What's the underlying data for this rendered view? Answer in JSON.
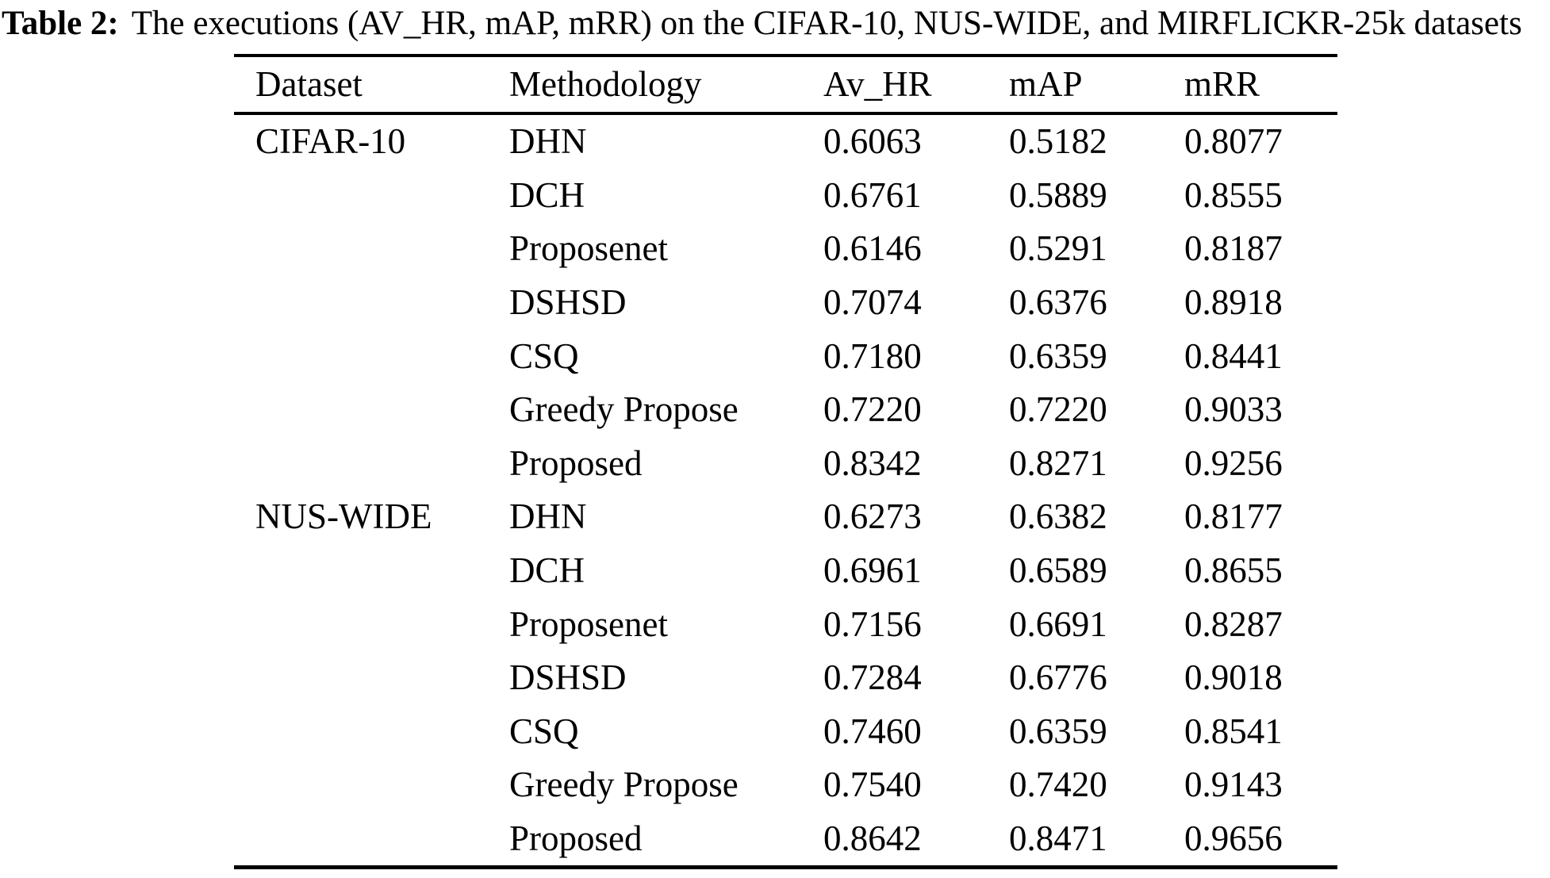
{
  "caption": {
    "label": "Table 2:",
    "text": "The executions (AV_HR, mAP, mRR) on the CIFAR-10, NUS-WIDE, and MIRFLICKR-25k datasets"
  },
  "colors": {
    "text": "#000000",
    "background": "#ffffff",
    "rule": "#000000"
  },
  "table": {
    "columns": [
      "Dataset",
      "Methodology",
      "Av_HR",
      "mAP",
      "mRR"
    ],
    "rows": [
      {
        "dataset": "CIFAR-10",
        "methodology": "DHN",
        "av_hr": "0.6063",
        "map": "0.5182",
        "mrr": "0.8077"
      },
      {
        "dataset": "",
        "methodology": "DCH",
        "av_hr": "0.6761",
        "map": "0.5889",
        "mrr": "0.8555"
      },
      {
        "dataset": "",
        "methodology": "Proposenet",
        "av_hr": "0.6146",
        "map": "0.5291",
        "mrr": "0.8187"
      },
      {
        "dataset": "",
        "methodology": "DSHSD",
        "av_hr": "0.7074",
        "map": "0.6376",
        "mrr": "0.8918"
      },
      {
        "dataset": "",
        "methodology": "CSQ",
        "av_hr": "0.7180",
        "map": "0.6359",
        "mrr": "0.8441"
      },
      {
        "dataset": "",
        "methodology": "Greedy Propose",
        "av_hr": "0.7220",
        "map": "0.7220",
        "mrr": "0.9033"
      },
      {
        "dataset": "",
        "methodology": "Proposed",
        "av_hr": "0.8342",
        "map": "0.8271",
        "mrr": "0.9256"
      },
      {
        "dataset": "NUS-WIDE",
        "methodology": "DHN",
        "av_hr": "0.6273",
        "map": "0.6382",
        "mrr": "0.8177"
      },
      {
        "dataset": "",
        "methodology": "DCH",
        "av_hr": "0.6961",
        "map": "0.6589",
        "mrr": "0.8655"
      },
      {
        "dataset": "",
        "methodology": "Proposenet",
        "av_hr": "0.7156",
        "map": "0.6691",
        "mrr": "0.8287"
      },
      {
        "dataset": "",
        "methodology": "DSHSD",
        "av_hr": "0.7284",
        "map": "0.6776",
        "mrr": "0.9018"
      },
      {
        "dataset": "",
        "methodology": "CSQ",
        "av_hr": "0.7460",
        "map": "0.6359",
        "mrr": "0.8541"
      },
      {
        "dataset": "",
        "methodology": "Greedy Propose",
        "av_hr": "0.7540",
        "map": "0.7420",
        "mrr": "0.9143"
      },
      {
        "dataset": "",
        "methodology": "Proposed",
        "av_hr": "0.8642",
        "map": "0.8471",
        "mrr": "0.9656"
      }
    ]
  },
  "chart_data": {
    "type": "table",
    "title": "Table 2: The executions (AV_HR, mAP, mRR) on the CIFAR-10, NUS-WIDE, and MIRFLICKR-25k datasets",
    "columns": [
      "Dataset",
      "Methodology",
      "Av_HR",
      "mAP",
      "mRR"
    ],
    "series": [
      {
        "name": "CIFAR-10",
        "rows": [
          [
            "DHN",
            0.6063,
            0.5182,
            0.8077
          ],
          [
            "DCH",
            0.6761,
            0.5889,
            0.8555
          ],
          [
            "Proposenet",
            0.6146,
            0.5291,
            0.8187
          ],
          [
            "DSHSD",
            0.7074,
            0.6376,
            0.8918
          ],
          [
            "CSQ",
            0.718,
            0.6359,
            0.8441
          ],
          [
            "Greedy Propose",
            0.722,
            0.722,
            0.9033
          ],
          [
            "Proposed",
            0.8342,
            0.8271,
            0.9256
          ]
        ]
      },
      {
        "name": "NUS-WIDE",
        "rows": [
          [
            "DHN",
            0.6273,
            0.6382,
            0.8177
          ],
          [
            "DCH",
            0.6961,
            0.6589,
            0.8655
          ],
          [
            "Proposenet",
            0.7156,
            0.6691,
            0.8287
          ],
          [
            "DSHSD",
            0.7284,
            0.6776,
            0.9018
          ],
          [
            "CSQ",
            0.746,
            0.6359,
            0.8541
          ],
          [
            "Greedy Propose",
            0.754,
            0.742,
            0.9143
          ],
          [
            "Proposed",
            0.8642,
            0.8471,
            0.9656
          ]
        ]
      }
    ]
  }
}
